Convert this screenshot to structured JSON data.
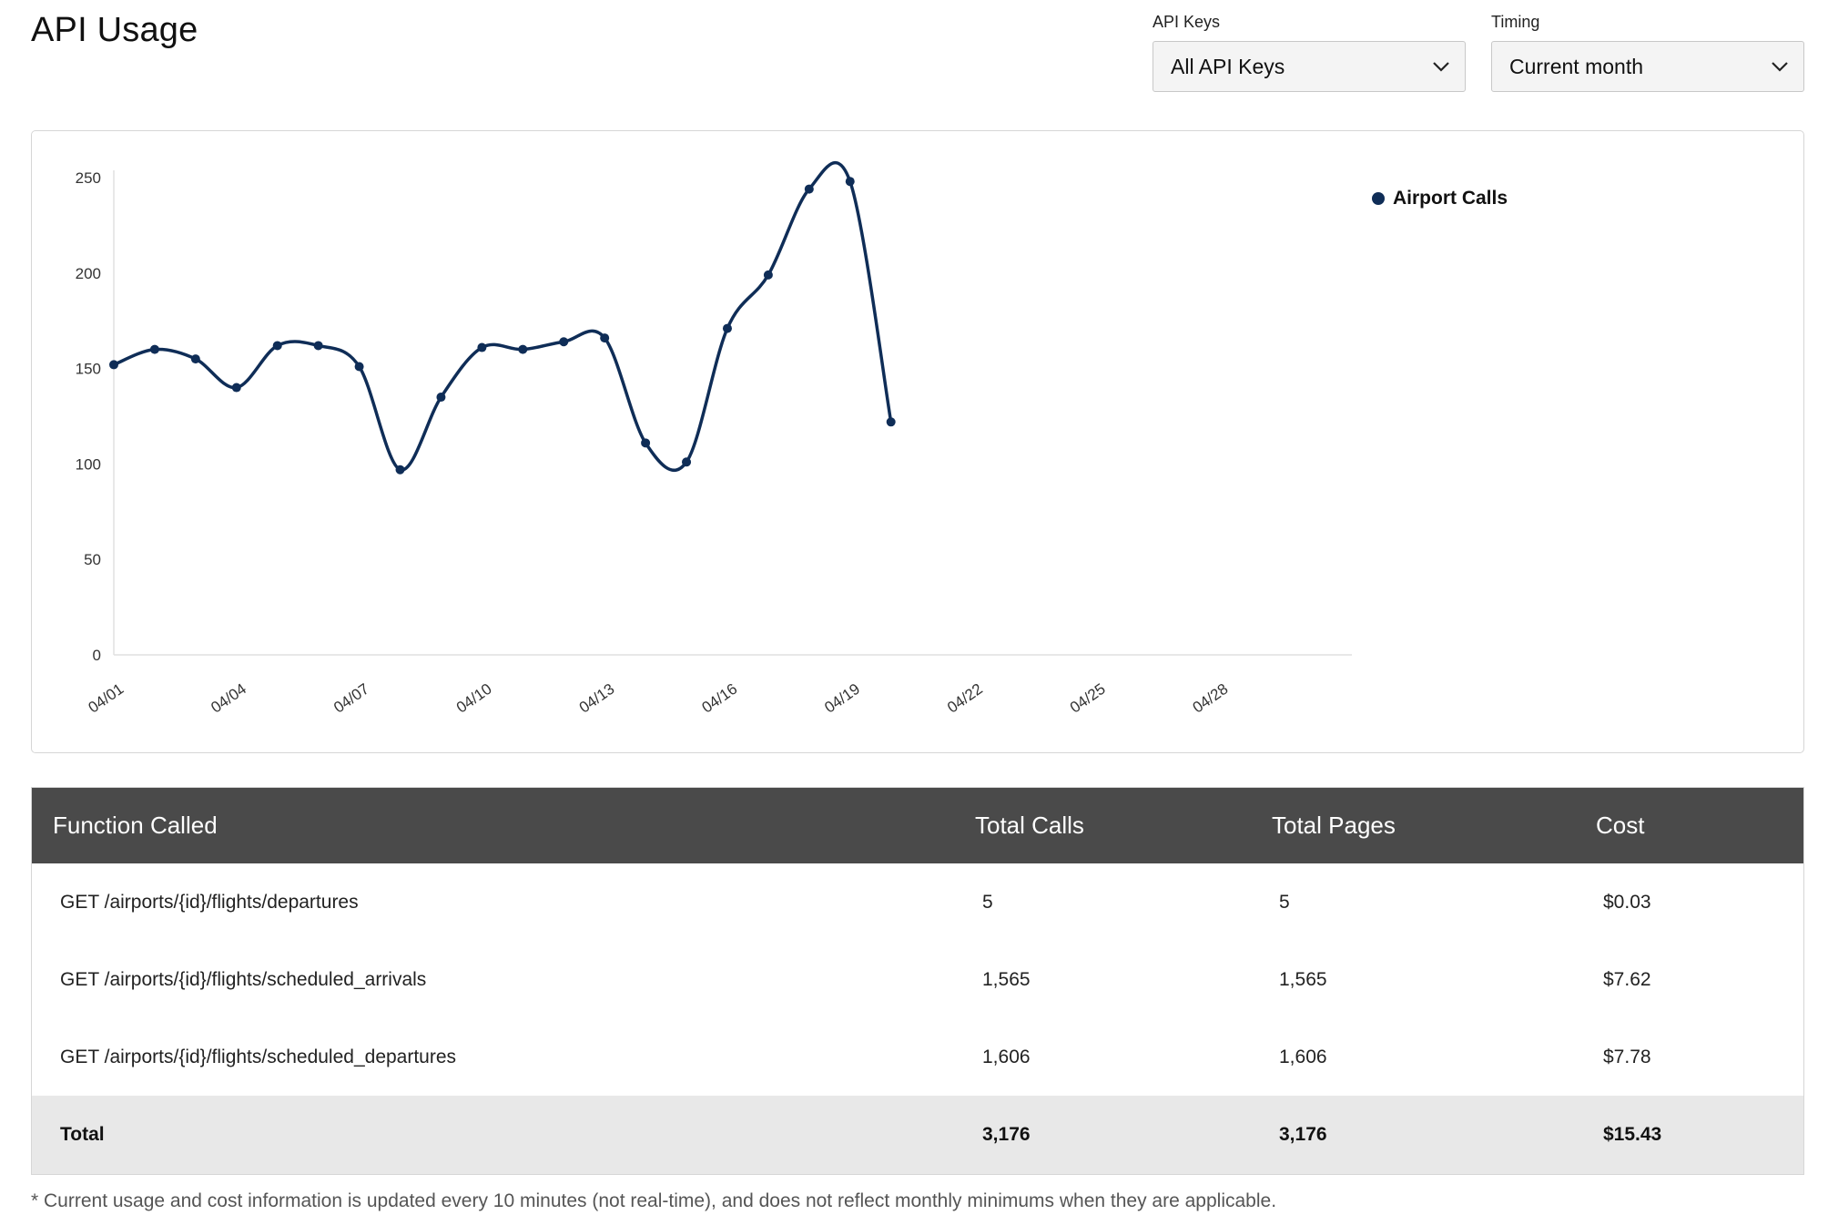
{
  "page": {
    "title": "API Usage"
  },
  "filters": {
    "api_keys": {
      "label": "API Keys",
      "value": "All API Keys"
    },
    "timing": {
      "label": "Timing",
      "value": "Current month"
    }
  },
  "chart_data": {
    "type": "line",
    "x": [
      "04/01",
      "04/02",
      "04/03",
      "04/04",
      "04/05",
      "04/06",
      "04/07",
      "04/08",
      "04/09",
      "04/10",
      "04/11",
      "04/12",
      "04/13",
      "04/14",
      "04/15",
      "04/16",
      "04/17",
      "04/18",
      "04/19",
      "04/20"
    ],
    "x_ticks": [
      "04/01",
      "04/04",
      "04/07",
      "04/10",
      "04/13",
      "04/16",
      "04/19",
      "04/22",
      "04/25",
      "04/28"
    ],
    "y_ticks": [
      "250",
      "200",
      "150",
      "100",
      "50",
      "0"
    ],
    "ylim": [
      0,
      250
    ],
    "x_range": [
      "04/01",
      "04/30"
    ],
    "series": [
      {
        "name": "Airport Calls",
        "color": "#0f2d57",
        "values": [
          152,
          160,
          155,
          140,
          162,
          162,
          151,
          97,
          135,
          161,
          160,
          164,
          166,
          111,
          101,
          171,
          199,
          244,
          248,
          122
        ]
      }
    ],
    "legend": {
      "position": "top-right"
    },
    "grid": false
  },
  "table": {
    "headers": {
      "function": "Function Called",
      "calls": "Total Calls",
      "pages": "Total Pages",
      "cost": "Cost"
    },
    "rows": [
      {
        "function": "GET /airports/{id}/flights/departures",
        "calls": "5",
        "pages": "5",
        "cost": "$0.03"
      },
      {
        "function": "GET /airports/{id}/flights/scheduled_arrivals",
        "calls": "1,565",
        "pages": "1,565",
        "cost": "$7.62"
      },
      {
        "function": "GET /airports/{id}/flights/scheduled_departures",
        "calls": "1,606",
        "pages": "1,606",
        "cost": "$7.78"
      }
    ],
    "total": {
      "label": "Total",
      "calls": "3,176",
      "pages": "3,176",
      "cost": "$15.43"
    }
  },
  "footnote": "* Current usage and cost information is updated every 10 minutes (not real-time), and does not reflect monthly minimums when they are applicable."
}
